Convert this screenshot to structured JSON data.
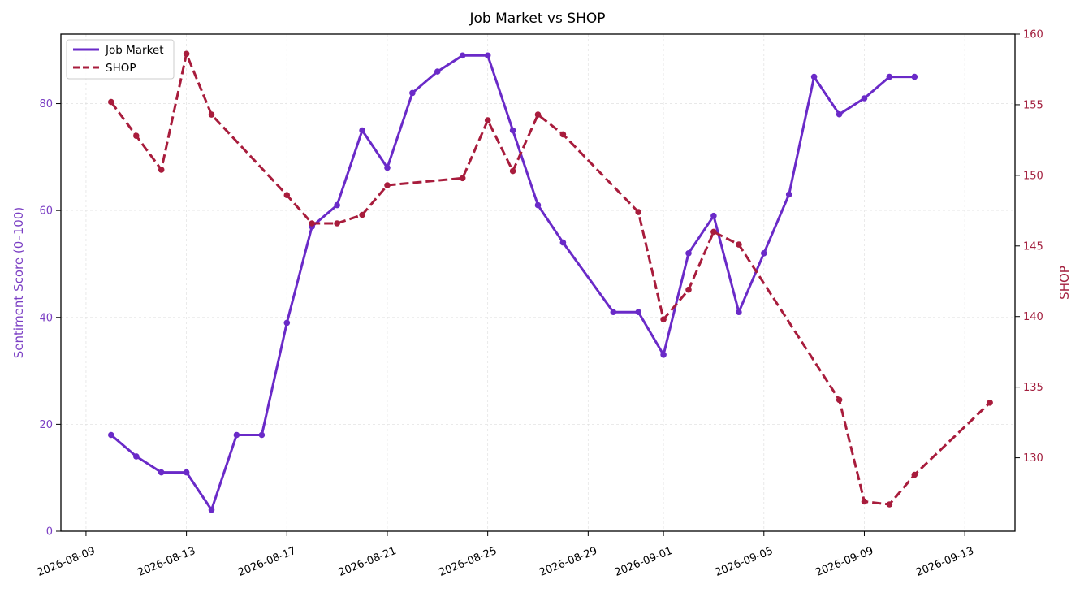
{
  "chart_data": {
    "type": "line",
    "title": "Job Market vs SHOP",
    "xlabel": "",
    "x_ticks": [
      "2026-08-09",
      "2026-08-13",
      "2026-08-17",
      "2026-08-21",
      "2026-08-25",
      "2026-08-29",
      "2026-09-01",
      "2026-09-05",
      "2026-09-09",
      "2026-09-13"
    ],
    "y_left": {
      "label": "Sentiment Score (0–100)",
      "lim": [
        0,
        93
      ],
      "ticks": [
        0,
        20,
        40,
        60,
        80
      ],
      "color": "#7b3fc4"
    },
    "y_right": {
      "label": "SHOP",
      "lim": [
        124.8,
        160
      ],
      "ticks": [
        130,
        135,
        140,
        145,
        150,
        155,
        160
      ],
      "color": "#a3203f"
    },
    "x_range": [
      "2026-08-08",
      "2026-09-15"
    ],
    "grid": true,
    "legend_position": "top-left",
    "series": [
      {
        "name": "Job Market",
        "axis": "left",
        "color": "#6a2ac8",
        "style": "solid",
        "points": [
          [
            "2026-08-10",
            18
          ],
          [
            "2026-08-11",
            14
          ],
          [
            "2026-08-12",
            11
          ],
          [
            "2026-08-13",
            11
          ],
          [
            "2026-08-14",
            4
          ],
          [
            "2026-08-15",
            18
          ],
          [
            "2026-08-16",
            18
          ],
          [
            "2026-08-17",
            39
          ],
          [
            "2026-08-18",
            57
          ],
          [
            "2026-08-19",
            61
          ],
          [
            "2026-08-20",
            75
          ],
          [
            "2026-08-21",
            68
          ],
          [
            "2026-08-22",
            82
          ],
          [
            "2026-08-23",
            86
          ],
          [
            "2026-08-24",
            89
          ],
          [
            "2026-08-25",
            89
          ],
          [
            "2026-08-26",
            75
          ],
          [
            "2026-08-27",
            61
          ],
          [
            "2026-08-28",
            54
          ],
          [
            "2026-08-30",
            41
          ],
          [
            "2026-08-31",
            41
          ],
          [
            "2026-09-01",
            33
          ],
          [
            "2026-09-02",
            52
          ],
          [
            "2026-09-03",
            59
          ],
          [
            "2026-09-04",
            41
          ],
          [
            "2026-09-05",
            52
          ],
          [
            "2026-09-06",
            63
          ],
          [
            "2026-09-07",
            85
          ],
          [
            "2026-09-08",
            78
          ],
          [
            "2026-09-09",
            81
          ],
          [
            "2026-09-10",
            85
          ],
          [
            "2026-09-11",
            85
          ]
        ]
      },
      {
        "name": "SHOP",
        "axis": "right",
        "color": "#a81c3c",
        "style": "dashed",
        "points": [
          [
            "2026-08-10",
            155.2
          ],
          [
            "2026-08-11",
            152.8
          ],
          [
            "2026-08-12",
            150.4
          ],
          [
            "2026-08-13",
            158.6
          ],
          [
            "2026-08-14",
            154.3
          ],
          [
            "2026-08-17",
            148.6
          ],
          [
            "2026-08-18",
            146.6
          ],
          [
            "2026-08-19",
            146.6
          ],
          [
            "2026-08-20",
            147.2
          ],
          [
            "2026-08-21",
            149.3
          ],
          [
            "2026-08-24",
            149.8
          ],
          [
            "2026-08-25",
            153.9
          ],
          [
            "2026-08-26",
            150.3
          ],
          [
            "2026-08-27",
            154.3
          ],
          [
            "2026-08-28",
            152.9
          ],
          [
            "2026-08-31",
            147.4
          ],
          [
            "2026-09-01",
            139.8
          ],
          [
            "2026-09-02",
            141.9
          ],
          [
            "2026-09-03",
            146.0
          ],
          [
            "2026-09-04",
            145.1
          ],
          [
            "2026-09-08",
            134.1
          ],
          [
            "2026-09-09",
            126.9
          ],
          [
            "2026-09-10",
            126.7
          ],
          [
            "2026-09-11",
            128.8
          ],
          [
            "2026-09-14",
            133.9
          ]
        ]
      }
    ]
  }
}
